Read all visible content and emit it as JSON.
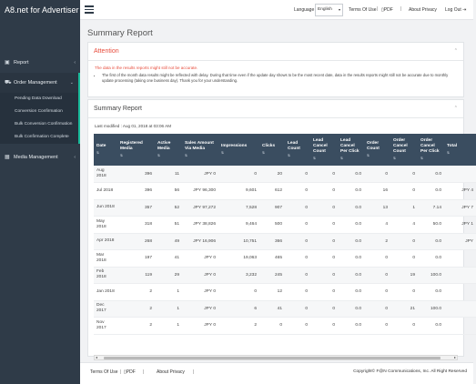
{
  "brand": "A8.net for Advertiser",
  "nav": {
    "report": "Report",
    "order_management": "Order Management",
    "sub_items": [
      "Pending Data Download",
      "Conversion Confirmation",
      "Bulk Conversion Confirmation",
      "Bulk Confirmation Complete"
    ],
    "media_management": "Media Management"
  },
  "topbar": {
    "language_label": "Language",
    "language_value": "English",
    "terms": "Terms Of Use",
    "pdf": "PDF",
    "about": "About Privacy",
    "logout": "Log Out"
  },
  "page_title": "Summary Report",
  "attention": {
    "title": "Attention",
    "warning": "The data in the results reports might still not be accurate.",
    "note": "The first of the month data results might be reflected with delay. During that time even if the update day shows to be the most recent date, data in the results reports might still not be accurate due to monthly update processing (taking one business day). Thank you for your understanding."
  },
  "summary": {
    "title": "Summary Report",
    "last_modified": "Last modified : Aug 01, 2018 at 03:06 AM",
    "columns": [
      "Date",
      "Registered Media",
      "Active Media",
      "Sales Amount Via Media",
      "Impressions",
      "Clicks",
      "Lead Count",
      "Lead Cancel Count",
      "Lead Cancel Per Click",
      "Order Count",
      "Order Cancel Count",
      "Order Cancel Per Click",
      "Total"
    ],
    "rows": [
      [
        "Aug 2018",
        "396",
        "11",
        "JPY 0",
        "0",
        "20",
        "0",
        "0",
        "0.0",
        "0",
        "0",
        "0.0",
        ""
      ],
      [
        "Jul 2018",
        "396",
        "56",
        "JPY 96,300",
        "9,601",
        "612",
        "0",
        "0",
        "0.0",
        "16",
        "0",
        "0.0",
        "JPY 4"
      ],
      [
        "Jun 2018",
        "357",
        "52",
        "JPY 97,272",
        "7,528",
        "907",
        "0",
        "0",
        "0.0",
        "13",
        "1",
        "7.14",
        "JPY 7"
      ],
      [
        "May 2018",
        "318",
        "51",
        "JPY 38,826",
        "9,464",
        "500",
        "0",
        "0",
        "0.0",
        "4",
        "4",
        "50.0",
        "JPY 1"
      ],
      [
        "Apr 2018",
        "268",
        "49",
        "JPY 16,906",
        "10,751",
        "366",
        "0",
        "0",
        "0.0",
        "2",
        "0",
        "0.0",
        "JPY"
      ],
      [
        "Mar 2018",
        "197",
        "41",
        "JPY 0",
        "19,063",
        "465",
        "0",
        "0",
        "0.0",
        "0",
        "0",
        "0.0",
        ""
      ],
      [
        "Feb 2018",
        "119",
        "29",
        "JPY 0",
        "3,232",
        "245",
        "0",
        "0",
        "0.0",
        "0",
        "19",
        "100.0",
        ""
      ],
      [
        "Jan 2018",
        "2",
        "1",
        "JPY 0",
        "0",
        "12",
        "0",
        "0",
        "0.0",
        "0",
        "0",
        "0.0",
        ""
      ],
      [
        "Dec 2017",
        "2",
        "1",
        "JPY 0",
        "6",
        "41",
        "0",
        "0",
        "0.0",
        "0",
        "21",
        "100.0",
        ""
      ],
      [
        "Nov 2017",
        "2",
        "1",
        "JPY 0",
        "2",
        "0",
        "0",
        "0",
        "0.0",
        "0",
        "0",
        "0.0",
        ""
      ]
    ]
  },
  "footer": {
    "terms": "Terms Of Use",
    "pdf": "PDF",
    "about": "About Privacy",
    "copyright": "Copyright© F@N Communications, Inc. All Right Reserved"
  }
}
